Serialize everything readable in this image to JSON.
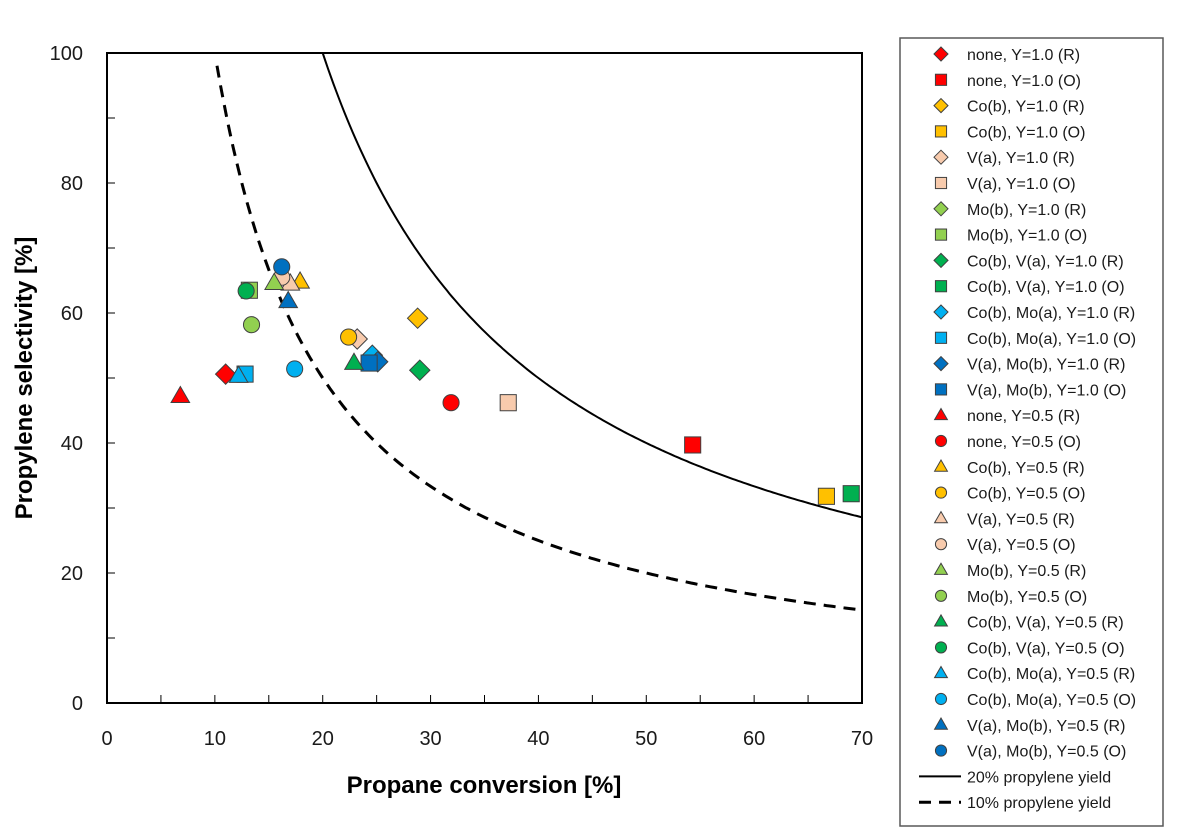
{
  "chart_data": {
    "type": "scatter",
    "title": "",
    "xlabel": "Propane conversion [%]",
    "ylabel": "Propylene selectivity [%]",
    "xlim": [
      0,
      70
    ],
    "ylim": [
      0,
      100
    ],
    "xticks": [
      0,
      10,
      20,
      30,
      40,
      50,
      60,
      70
    ],
    "yticks": [
      0,
      20,
      40,
      60,
      80,
      100
    ],
    "x_minor_step": 5,
    "y_minor_step": 10,
    "grid": false,
    "legend_position": "right",
    "series": [
      {
        "name": "none, Y=1.0 (R)",
        "marker": "diamond",
        "color": "#FF0000",
        "points": [
          [
            11.0,
            50.6
          ]
        ]
      },
      {
        "name": "none, Y=1.0 (O)",
        "marker": "square",
        "color": "#FF0000",
        "points": [
          [
            54.3,
            39.7
          ]
        ]
      },
      {
        "name": "Co(b), Y=1.0 (R)",
        "marker": "diamond",
        "color": "#FFC000",
        "points": [
          [
            28.8,
            59.2
          ]
        ]
      },
      {
        "name": "Co(b), Y=1.0 (O)",
        "marker": "square",
        "color": "#FFC000",
        "points": [
          [
            66.7,
            31.8
          ]
        ]
      },
      {
        "name": "V(a), Y=1.0 (R)",
        "marker": "diamond",
        "color": "#F8CBAD",
        "points": [
          [
            23.2,
            56.0
          ]
        ]
      },
      {
        "name": "V(a), Y=1.0 (O)",
        "marker": "square",
        "color": "#F8CBAD",
        "points": [
          [
            37.2,
            46.2
          ]
        ]
      },
      {
        "name": "Mo(b), Y=1.0 (R)",
        "marker": "diamond",
        "color": "#92D050",
        "points": []
      },
      {
        "name": "Mo(b), Y=1.0 (O)",
        "marker": "square",
        "color": "#92D050",
        "points": [
          [
            13.2,
            63.5
          ]
        ]
      },
      {
        "name": "Co(b), V(a), Y=1.0 (R)",
        "marker": "diamond",
        "color": "#00B050",
        "points": [
          [
            29.0,
            51.2
          ]
        ]
      },
      {
        "name": "Co(b), V(a), Y=1.0 (O)",
        "marker": "square",
        "color": "#00B050",
        "points": [
          [
            69.0,
            32.2
          ]
        ]
      },
      {
        "name": "Co(b), Mo(a), Y=1.0 (R)",
        "marker": "diamond",
        "color": "#00B0F0",
        "points": [
          [
            24.6,
            53.5
          ]
        ]
      },
      {
        "name": "Co(b), Mo(a), Y=1.0 (O)",
        "marker": "square",
        "color": "#00B0F0",
        "points": [
          [
            12.8,
            50.6
          ]
        ]
      },
      {
        "name": "V(a), Mo(b), Y=1.0 (R)",
        "marker": "diamond",
        "color": "#0070C0",
        "points": [
          [
            25.1,
            52.5
          ]
        ]
      },
      {
        "name": "V(a), Mo(b), Y=1.0 (O)",
        "marker": "square",
        "color": "#0070C0",
        "points": [
          [
            24.3,
            52.3
          ]
        ]
      },
      {
        "name": "none, Y=0.5 (R)",
        "marker": "triangle",
        "color": "#FF0000",
        "points": [
          [
            6.8,
            47.2
          ]
        ]
      },
      {
        "name": "none, Y=0.5 (O)",
        "marker": "circle",
        "color": "#FF0000",
        "points": [
          [
            31.9,
            46.2
          ]
        ]
      },
      {
        "name": "Co(b), Y=0.5 (R)",
        "marker": "triangle",
        "color": "#FFC000",
        "points": [
          [
            17.9,
            64.8
          ]
        ]
      },
      {
        "name": "Co(b), Y=0.5 (O)",
        "marker": "circle",
        "color": "#FFC000",
        "points": [
          [
            22.4,
            56.3
          ]
        ]
      },
      {
        "name": "V(a), Y=0.5 (R)",
        "marker": "triangle",
        "color": "#F8CBAD",
        "points": [
          [
            17.0,
            64.5
          ]
        ]
      },
      {
        "name": "V(a), Y=0.5 (O)",
        "marker": "circle",
        "color": "#F8CBAD",
        "points": [
          [
            16.2,
            65.5
          ]
        ]
      },
      {
        "name": "Mo(b), Y=0.5 (R)",
        "marker": "triangle",
        "color": "#92D050",
        "points": [
          [
            15.5,
            64.6
          ]
        ]
      },
      {
        "name": "Mo(b), Y=0.5 (O)",
        "marker": "circle",
        "color": "#92D050",
        "points": [
          [
            13.4,
            58.2
          ]
        ]
      },
      {
        "name": "Co(b), V(a), Y=0.5 (R)",
        "marker": "triangle",
        "color": "#00B050",
        "points": [
          [
            22.9,
            52.3
          ]
        ]
      },
      {
        "name": "Co(b), V(a), Y=0.5 (O)",
        "marker": "circle",
        "color": "#00B050",
        "points": [
          [
            12.9,
            63.4
          ]
        ]
      },
      {
        "name": "Co(b), Mo(a), Y=0.5 (R)",
        "marker": "triangle",
        "color": "#00B0F0",
        "points": [
          [
            12.2,
            50.3
          ]
        ]
      },
      {
        "name": "Co(b), Mo(a), Y=0.5 (O)",
        "marker": "circle",
        "color": "#00B0F0",
        "points": [
          [
            17.4,
            51.4
          ]
        ]
      },
      {
        "name": "V(a), Mo(b), Y=0.5 (R)",
        "marker": "triangle",
        "color": "#0070C0",
        "points": [
          [
            16.8,
            61.8
          ]
        ]
      },
      {
        "name": "V(a), Mo(b), Y=0.5 (O)",
        "marker": "circle",
        "color": "#0070C0",
        "points": [
          [
            16.2,
            67.1
          ]
        ]
      }
    ],
    "curves": [
      {
        "name": "20% propylene yield",
        "style": "solid",
        "yield_percent": 20,
        "x_range": [
          20,
          70
        ]
      },
      {
        "name": "10% propylene yield",
        "style": "dashed",
        "yield_percent": 10,
        "x_range": [
          10.2,
          70
        ]
      }
    ]
  }
}
